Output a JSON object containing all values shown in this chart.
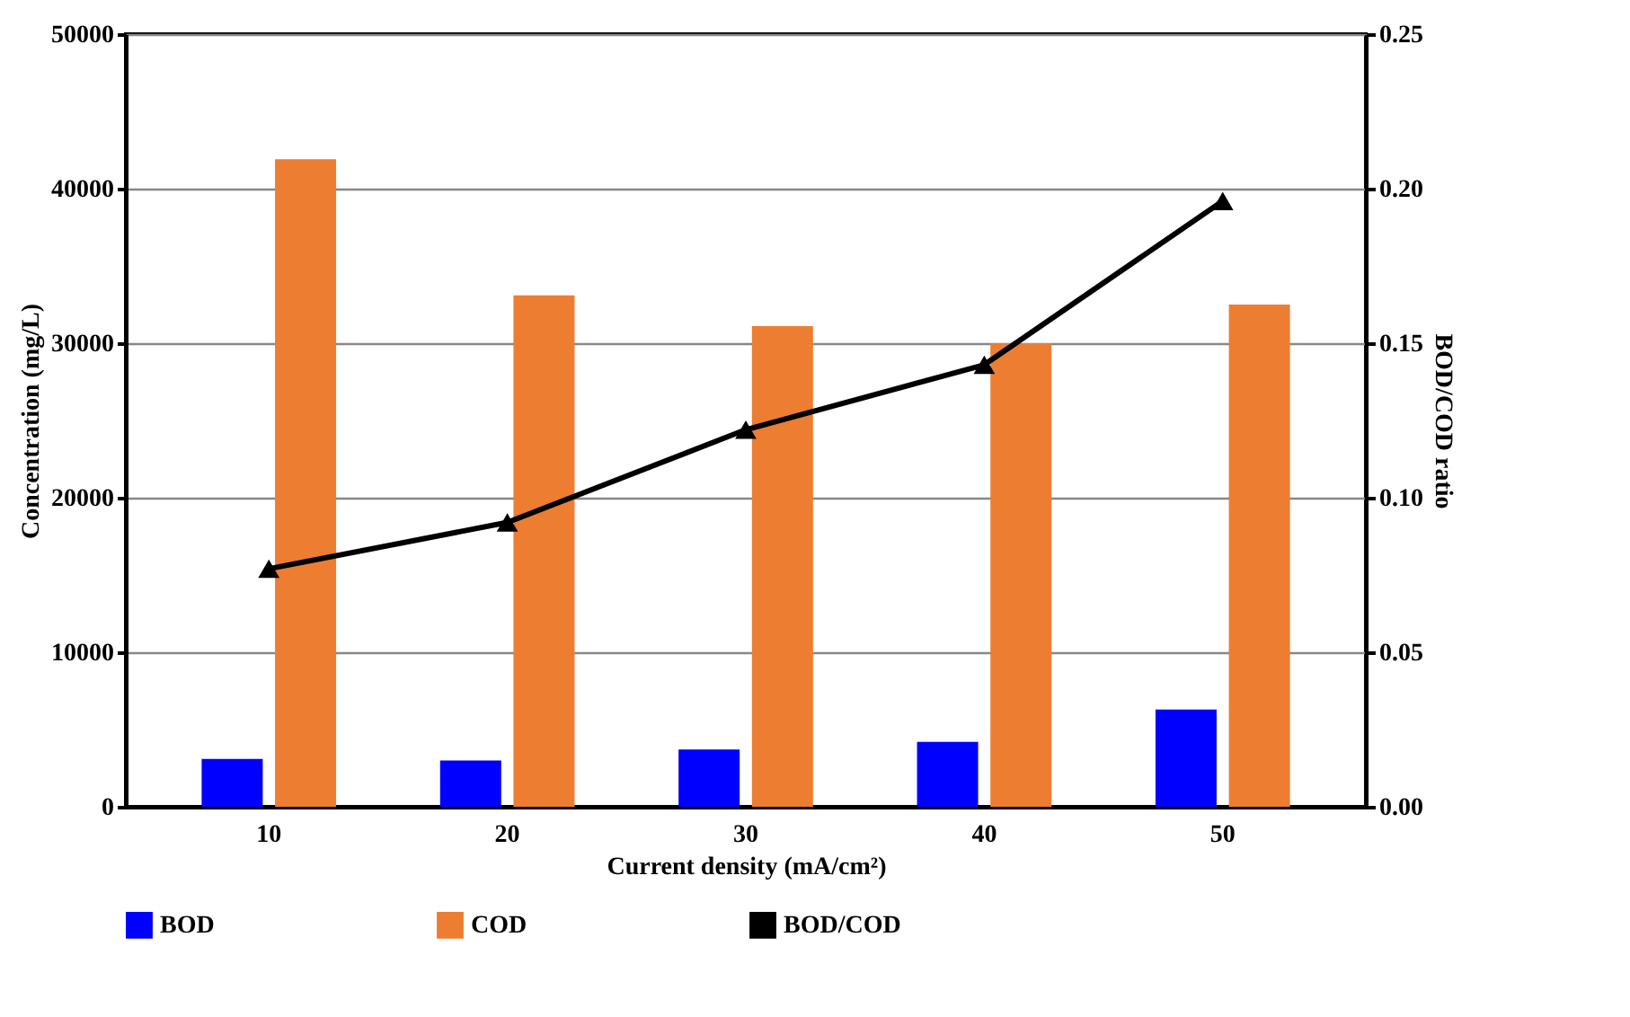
{
  "chart_data": {
    "type": "bar",
    "xlabel": "Current density (mA/cm²)",
    "ylabel": "Concentration (mg/L)",
    "y2label": "BOD/COD ratio",
    "categories": [
      "10",
      "20",
      "30",
      "40",
      "50"
    ],
    "series": [
      {
        "name": "BOD",
        "color": "#0000ff",
        "values": [
          3100,
          3000,
          3700,
          4200,
          6300
        ]
      },
      {
        "name": "COD",
        "color": "#ed7d31",
        "values": [
          41900,
          33100,
          31100,
          30000,
          32500
        ]
      },
      {
        "name": "BOD/COD",
        "type": "line",
        "axis": "y2",
        "color": "#000000",
        "marker": "triangle",
        "values": [
          0.077,
          0.092,
          0.122,
          0.143,
          0.196
        ]
      }
    ],
    "ylim": [
      0,
      50000
    ],
    "yticks": [
      0,
      10000,
      20000,
      30000,
      40000,
      50000
    ],
    "y2lim": [
      0,
      0.25
    ],
    "y2ticks": [
      {
        "value": 0,
        "label": "0.00"
      },
      {
        "value": 0.05,
        "label": "0.05"
      },
      {
        "value": 0.1,
        "label": "0.10"
      },
      {
        "value": 0.15,
        "label": "0.15"
      },
      {
        "value": 0.2,
        "label": "0.20"
      },
      {
        "value": 0.25,
        "label": "0.25"
      }
    ],
    "grid": "y",
    "legend": "bottom"
  }
}
